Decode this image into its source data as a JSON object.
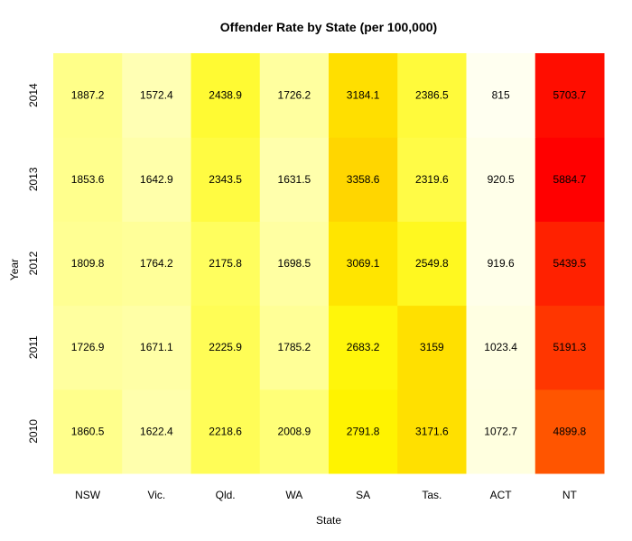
{
  "chart_data": {
    "type": "heatmap",
    "title": "Offender Rate by State (per 100,000)",
    "xlabel": "State",
    "ylabel": "Year",
    "x_categories": [
      "NSW",
      "Vic.",
      "Qld.",
      "WA",
      "SA",
      "Tas.",
      "ACT",
      "NT"
    ],
    "y_categories": [
      "2010",
      "2011",
      "2012",
      "2013",
      "2014"
    ],
    "values": [
      [
        1860.5,
        1622.4,
        2218.6,
        2008.9,
        2791.8,
        3171.6,
        1072.7,
        4899.8
      ],
      [
        1726.9,
        1671.1,
        2225.9,
        1785.2,
        2683.2,
        3159,
        1023.4,
        5191.3
      ],
      [
        1809.8,
        1764.2,
        2175.8,
        1698.5,
        3069.1,
        2549.8,
        919.6,
        5439.5
      ],
      [
        1853.6,
        1642.9,
        2343.5,
        1631.5,
        3358.6,
        2319.6,
        920.5,
        5884.7
      ],
      [
        1887.2,
        1572.4,
        2438.9,
        1726.2,
        3184.1,
        2386.5,
        815,
        5703.7
      ]
    ],
    "colormap": "heat (white-yellow-orange-red, low to high)"
  }
}
